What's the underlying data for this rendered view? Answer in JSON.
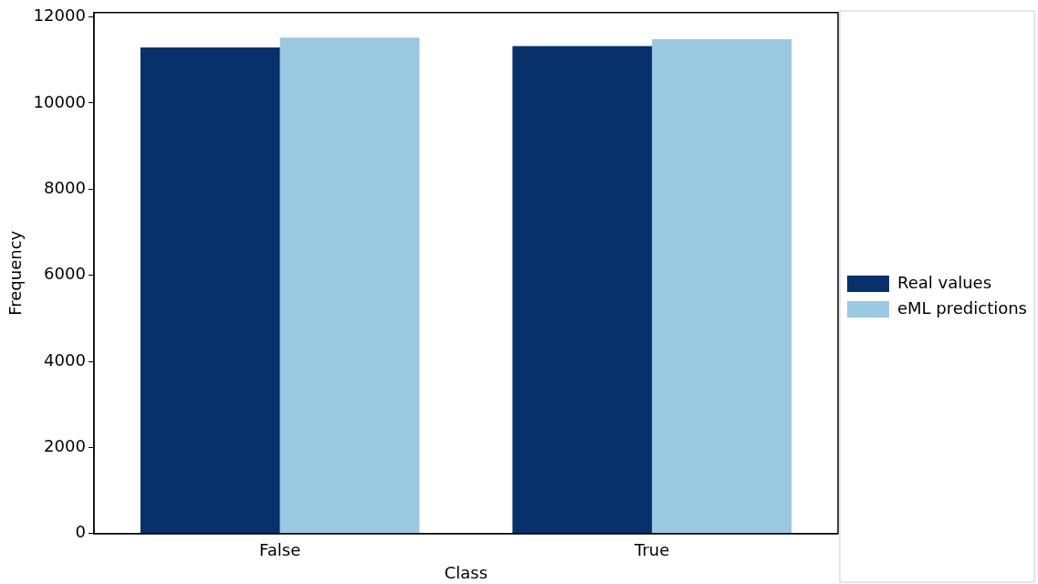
{
  "chart_data": {
    "type": "bar",
    "xlabel": "Class",
    "ylabel": "Frequency",
    "categories": [
      "False",
      "True"
    ],
    "series": [
      {
        "name": "Real values",
        "color": "#08306b",
        "values": [
          11290,
          11320
        ]
      },
      {
        "name": "eML predictions",
        "color": "#9ac8e0",
        "values": [
          11520,
          11480
        ]
      }
    ],
    "ylim": [
      0,
      12100
    ],
    "yticks": [
      0,
      2000,
      4000,
      6000,
      8000,
      10000,
      12000
    ],
    "grid": false,
    "legend": "right"
  }
}
